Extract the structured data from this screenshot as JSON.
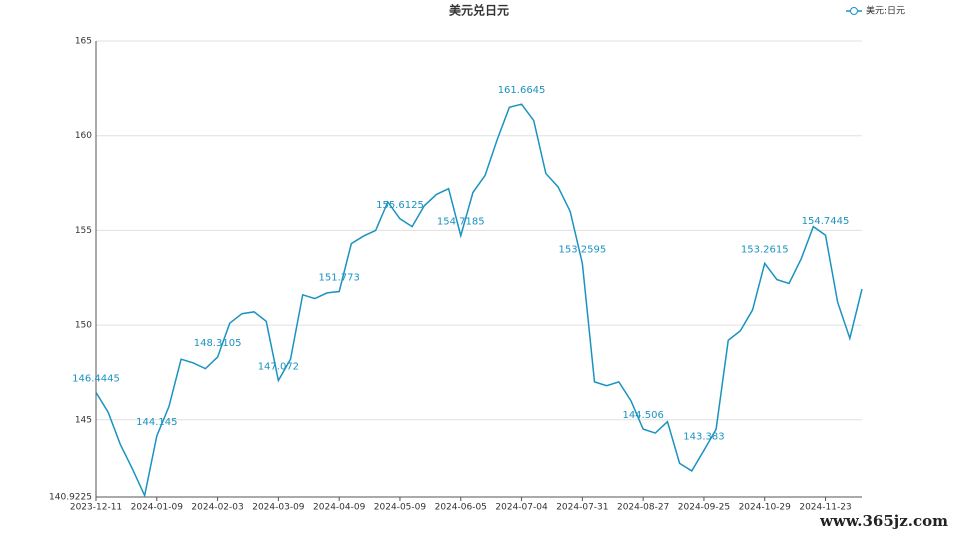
{
  "chart_data": {
    "type": "line",
    "title": "美元兑日元",
    "categories": [
      "2023-12-11",
      null,
      null,
      null,
      null,
      "2024-01-09",
      null,
      null,
      null,
      null,
      "2024-02-03",
      null,
      null,
      null,
      null,
      "2024-03-09",
      null,
      null,
      null,
      null,
      "2024-04-09",
      null,
      null,
      null,
      null,
      "2024-05-09",
      null,
      null,
      null,
      null,
      "2024-06-05",
      null,
      null,
      null,
      null,
      "2024-07-04",
      null,
      null,
      null,
      null,
      "2024-07-31",
      null,
      null,
      null,
      null,
      "2024-08-27",
      null,
      null,
      null,
      null,
      "2024-09-25",
      null,
      null,
      null,
      null,
      "2024-10-29",
      null,
      null,
      null,
      null,
      "2024-11-23",
      null,
      null,
      null
    ],
    "series": [
      {
        "name": "美元:日元",
        "color": "#1a93c0",
        "values": [
          146.4445,
          145.4,
          143.7,
          142.4,
          141.0,
          144.145,
          145.7,
          148.2,
          148.0,
          147.7,
          148.3105,
          150.1,
          150.6,
          150.7,
          150.2,
          147.072,
          148.2,
          151.6,
          151.4,
          151.7,
          151.773,
          154.3,
          154.7,
          155.0,
          156.5,
          155.6125,
          155.2,
          156.3,
          156.9,
          157.2,
          154.7185,
          157.0,
          157.9,
          159.8,
          161.5,
          161.6645,
          160.8,
          158.0,
          157.3,
          156.0,
          153.2595,
          147.0,
          146.8,
          147.0,
          146.0,
          144.506,
          144.3,
          144.9,
          142.7,
          142.3,
          143.383,
          144.5,
          149.2,
          149.7,
          150.8,
          153.2615,
          152.4,
          152.2,
          153.5,
          155.2,
          154.7445,
          151.2,
          149.3,
          151.9
        ]
      }
    ],
    "ylim": [
      140.9225,
      165
    ],
    "yticks": [
      {
        "value": 140.9225,
        "label": "140.9225"
      },
      145,
      150,
      155,
      160,
      165
    ],
    "grid": true,
    "legend": "top-right",
    "watermark": "www.365jz.com"
  }
}
